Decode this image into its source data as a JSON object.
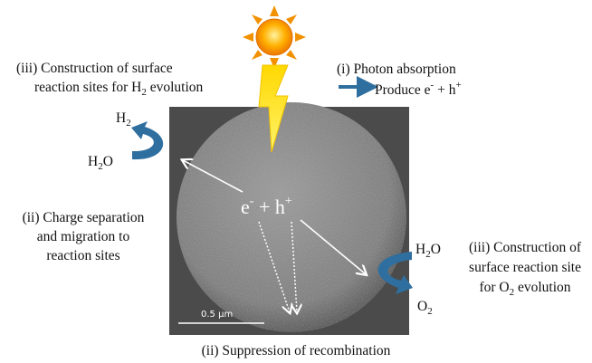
{
  "sites_h2": [
    "(iii) Construction of surface",
    "reaction sites for H",
    "2",
    " evolution"
  ],
  "photon": [
    "(i) Photon absorption",
    "Produce e",
    "-",
    " + h",
    "+"
  ],
  "left_top": [
    "H",
    "2"
  ],
  "left_bottom": [
    "H",
    "2",
    "O"
  ],
  "charge": [
    "(ii) Charge separation",
    "and migration to",
    "reaction sites"
  ],
  "center": [
    "e",
    "-",
    " + h",
    "+"
  ],
  "right_top": [
    "H",
    "2",
    "O"
  ],
  "right_bottom": [
    "O",
    "2"
  ],
  "sites_o2": [
    "(iii) Construction of",
    "surface reaction site",
    "for O",
    "2",
    " evolution"
  ],
  "scale": "0.5 μm",
  "recombination": "(ii) Suppression of recombination"
}
